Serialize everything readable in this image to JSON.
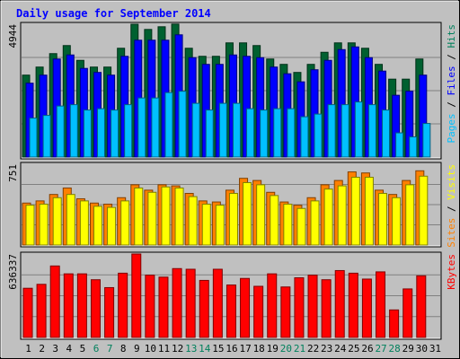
{
  "chart_data": {
    "type": "bar",
    "title": "Daily usage for September 2014",
    "days": [
      "1",
      "2",
      "3",
      "4",
      "5",
      "6",
      "7",
      "8",
      "9",
      "10",
      "11",
      "12",
      "13",
      "14",
      "15",
      "16",
      "17",
      "18",
      "19",
      "20",
      "21",
      "22",
      "23",
      "24",
      "25",
      "26",
      "27",
      "28",
      "29",
      "30",
      "31"
    ],
    "weekend_days": [
      "6",
      "7",
      "13",
      "14",
      "20",
      "21",
      "27",
      "28"
    ],
    "panels": [
      {
        "id": "hits",
        "ymax_label": "4944",
        "ylim": [
          0,
          4944
        ],
        "legend": [
          {
            "text": "Pages",
            "color": "#00c0ff"
          },
          {
            "text": " / ",
            "color": "#000000"
          },
          {
            "text": "Files",
            "color": "#0000ff"
          },
          {
            "text": " / ",
            "color": "#000000"
          },
          {
            "text": "Hits",
            "color": "#00805c"
          }
        ],
        "series": [
          {
            "key": "hits",
            "color": "#006030",
            "values": [
              3050,
              3350,
              3850,
              4150,
              3600,
              3350,
              3350,
              4050,
              4944,
              4750,
              4850,
              4950,
              4050,
              3750,
              3750,
              4250,
              4250,
              4150,
              3650,
              3450,
              3150,
              3450,
              3900,
              4250,
              4250,
              4050,
              3450,
              2900,
              2900,
              3650,
              0
            ]
          },
          {
            "key": "files",
            "color": "#0000ff",
            "values": [
              2750,
              3050,
              3650,
              3800,
              3300,
              3150,
              3050,
              3750,
              4350,
              4350,
              4350,
              4550,
              3700,
              3450,
              3450,
              3800,
              3750,
              3700,
              3350,
              3100,
              2800,
              3250,
              3600,
              4000,
              4100,
              3700,
              3200,
              2300,
              2450,
              3050,
              0
            ]
          },
          {
            "key": "pages",
            "color": "#00c0ff",
            "values": [
              1450,
              1550,
              1900,
              1950,
              1750,
              1800,
              1750,
              1950,
              2200,
              2200,
              2400,
              2450,
              2000,
              1750,
              2000,
              2000,
              1800,
              1750,
              1800,
              1800,
              1500,
              1600,
              1950,
              1950,
              2050,
              1950,
              1750,
              900,
              750,
              1250,
              0
            ]
          }
        ]
      },
      {
        "id": "visits",
        "ymax_label": "751",
        "ylim": [
          0,
          751
        ],
        "legend": [
          {
            "text": "Sites",
            "color": "#ff8000"
          },
          {
            "text": " / ",
            "color": "#000000"
          },
          {
            "text": "Visits",
            "color": "#ffff00"
          }
        ],
        "series": [
          {
            "key": "visits",
            "color": "#ff8000",
            "values": [
              390,
              410,
              470,
              530,
              430,
              390,
              380,
              440,
              560,
              510,
              560,
              550,
              480,
              410,
              400,
              510,
              620,
              600,
              490,
              400,
              370,
              440,
              560,
              600,
              680,
              670,
              510,
              470,
              600,
              690,
              0
            ]
          },
          {
            "key": "sites",
            "color": "#ffff00",
            "values": [
              370,
              380,
              440,
              470,
              410,
              360,
              350,
              410,
              530,
              490,
              540,
              530,
              450,
              380,
              370,
              480,
              580,
              560,
              460,
              380,
              340,
              410,
              520,
              550,
              630,
              630,
              480,
              440,
              560,
              640,
              0
            ]
          }
        ]
      },
      {
        "id": "kbytes",
        "ymax_label": "636337",
        "ylim": [
          0,
          636337
        ],
        "legend": [
          {
            "text": "KBytes",
            "color": "#ff0000"
          }
        ],
        "series": [
          {
            "key": "kbytes",
            "color": "#ff0000",
            "values": [
              375000,
              405000,
              545000,
              485000,
              485000,
              440000,
              380000,
              490000,
              636337,
              475000,
              460000,
              525000,
              520000,
              435000,
              520000,
              400000,
              450000,
              390000,
              485000,
              385000,
              455000,
              475000,
              440000,
              510000,
              490000,
              445000,
              500000,
              210000,
              370000,
              470000,
              0
            ]
          }
        ]
      }
    ]
  }
}
